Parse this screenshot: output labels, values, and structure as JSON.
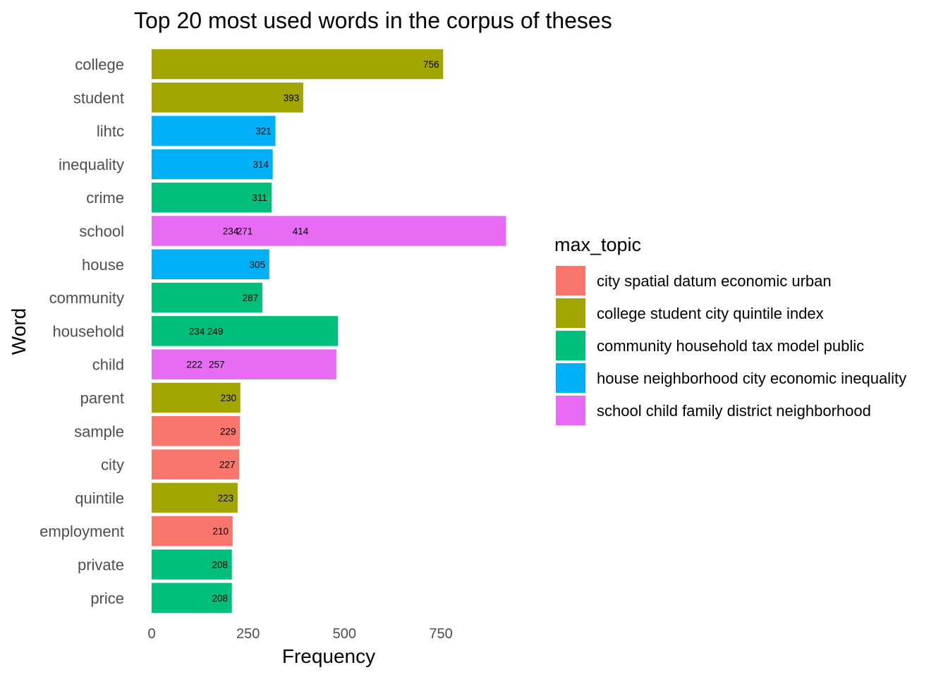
{
  "chart_data": {
    "type": "bar",
    "orientation": "horizontal",
    "title": "Top 20 most used words in the corpus of theses",
    "xlabel": "Frequency",
    "ylabel": "Word",
    "xlim": [
      0,
      950
    ],
    "xticks": [
      "0",
      "250",
      "500",
      "750"
    ],
    "grid": false,
    "legend": {
      "title": "max_topic",
      "placement": "right"
    },
    "series": [
      {
        "name": "city spatial datum economic urban",
        "color": "#F8766D"
      },
      {
        "name": "college student city quintile index",
        "color": "#A3A500"
      },
      {
        "name": "community household tax model public",
        "color": "#00BF7D"
      },
      {
        "name": "house neighborhood city economic inequality",
        "color": "#00B0F6"
      },
      {
        "name": "school child family district neighborhood",
        "color": "#E76BF3"
      }
    ],
    "categories": [
      "college",
      "student",
      "lihtc",
      "inequality",
      "crime",
      "school",
      "house",
      "community",
      "household",
      "child",
      "parent",
      "sample",
      "city",
      "quintile",
      "employment",
      "private",
      "price"
    ],
    "bars": [
      {
        "word": "college",
        "topic": 1,
        "value": 756,
        "labels": [
          "756"
        ]
      },
      {
        "word": "student",
        "topic": 1,
        "value": 393,
        "labels": [
          "393"
        ]
      },
      {
        "word": "lihtc",
        "topic": 3,
        "value": 321,
        "labels": [
          "321"
        ]
      },
      {
        "word": "inequality",
        "topic": 3,
        "value": 314,
        "labels": [
          "314"
        ]
      },
      {
        "word": "crime",
        "topic": 2,
        "value": 311,
        "labels": [
          "311"
        ]
      },
      {
        "word": "school",
        "topic": 4,
        "value": 919,
        "labels": [
          "234",
          "271",
          "414"
        ]
      },
      {
        "word": "house",
        "topic": 3,
        "value": 305,
        "labels": [
          "305"
        ]
      },
      {
        "word": "community",
        "topic": 2,
        "value": 287,
        "labels": [
          "287"
        ]
      },
      {
        "word": "household",
        "topic": 2,
        "value": 483,
        "labels": [
          "234",
          "249"
        ]
      },
      {
        "word": "child",
        "topic": 4,
        "value": 479,
        "labels": [
          "222",
          "257"
        ]
      },
      {
        "word": "parent",
        "topic": 1,
        "value": 230,
        "labels": [
          "230"
        ]
      },
      {
        "word": "sample",
        "topic": 0,
        "value": 229,
        "labels": [
          "229"
        ]
      },
      {
        "word": "city",
        "topic": 0,
        "value": 227,
        "labels": [
          "227"
        ]
      },
      {
        "word": "quintile",
        "topic": 1,
        "value": 223,
        "labels": [
          "223"
        ]
      },
      {
        "word": "employment",
        "topic": 0,
        "value": 210,
        "labels": [
          "210"
        ]
      },
      {
        "word": "private",
        "topic": 2,
        "value": 208,
        "labels": [
          "208"
        ]
      },
      {
        "word": "price",
        "topic": 2,
        "value": 208,
        "labels": [
          "208"
        ]
      }
    ]
  }
}
